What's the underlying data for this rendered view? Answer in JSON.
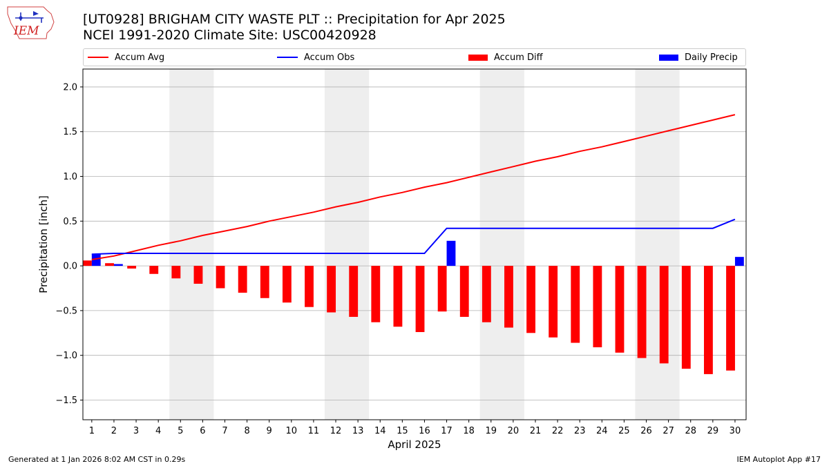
{
  "header": {
    "title_line1": "[UT0928] BRIGHAM CITY WASTE PLT :: Precipitation for Apr 2025",
    "title_line2": "NCEI 1991-2020 Climate Site: USC00420928",
    "logo_text": "IEM"
  },
  "legend": {
    "position": "top",
    "items": [
      {
        "label": "Accum Avg",
        "kind": "line",
        "color": "#ff0000"
      },
      {
        "label": "Accum Obs",
        "kind": "line",
        "color": "#0000ff"
      },
      {
        "label": "Accum Diff",
        "kind": "bar",
        "color": "#ff0000"
      },
      {
        "label": "Daily Precip",
        "kind": "bar",
        "color": "#0000ff"
      }
    ]
  },
  "footer": {
    "generated": "Generated at 1 Jan 2026 8:02 AM CST in 0.29s",
    "app": "IEM Autoplot App #17"
  },
  "colors": {
    "avg": "#ff0000",
    "obs": "#0000ff",
    "diff": "#ff0000",
    "daily": "#0000ff",
    "weekend_shade": "#eeeeee",
    "grid": "#b0b0b0"
  },
  "chart_data": {
    "type": "bar",
    "xlabel": "April 2025",
    "ylabel": "Precipitation [inch]",
    "ylim": [
      -1.72,
      2.2
    ],
    "xlim": [
      0.6,
      30.5
    ],
    "yticks": [
      -1.5,
      -1.0,
      -0.5,
      0.0,
      0.5,
      1.0,
      1.5,
      2.0
    ],
    "ytick_labels": [
      "−1.5",
      "−1.0",
      "−0.5",
      "0.0",
      "0.5",
      "1.0",
      "1.5",
      "2.0"
    ],
    "grid": "horizontal",
    "x": [
      1,
      2,
      3,
      4,
      5,
      6,
      7,
      8,
      9,
      10,
      11,
      12,
      13,
      14,
      15,
      16,
      17,
      18,
      19,
      20,
      21,
      22,
      23,
      24,
      25,
      26,
      27,
      28,
      29,
      30
    ],
    "x_tick_labels": [
      "1",
      "2",
      "3",
      "4",
      "5",
      "6",
      "7",
      "8",
      "9",
      "10",
      "11",
      "12",
      "13",
      "14",
      "15",
      "16",
      "17",
      "18",
      "19",
      "20",
      "21",
      "22",
      "23",
      "24",
      "25",
      "26",
      "27",
      "28",
      "29",
      "30"
    ],
    "weekend_days": [
      [
        5,
        6
      ],
      [
        12,
        13
      ],
      [
        19,
        20
      ],
      [
        26,
        27
      ]
    ],
    "series": [
      {
        "name": "Accum Avg",
        "kind": "line",
        "values": [
          0.07,
          0.11,
          0.17,
          0.23,
          0.28,
          0.34,
          0.39,
          0.44,
          0.5,
          0.55,
          0.6,
          0.66,
          0.71,
          0.77,
          0.82,
          0.88,
          0.93,
          0.99,
          1.05,
          1.11,
          1.17,
          1.22,
          1.28,
          1.33,
          1.39,
          1.45,
          1.51,
          1.57,
          1.63,
          1.69
        ]
      },
      {
        "name": "Accum Obs",
        "kind": "line",
        "values": [
          0.13,
          0.14,
          0.14,
          0.14,
          0.14,
          0.14,
          0.14,
          0.14,
          0.14,
          0.14,
          0.14,
          0.14,
          0.14,
          0.14,
          0.14,
          0.14,
          0.42,
          0.42,
          0.42,
          0.42,
          0.42,
          0.42,
          0.42,
          0.42,
          0.42,
          0.42,
          0.42,
          0.42,
          0.42,
          0.52
        ]
      },
      {
        "name": "Accum Diff",
        "kind": "bar",
        "values": [
          0.06,
          0.03,
          -0.03,
          -0.09,
          -0.14,
          -0.2,
          -0.25,
          -0.3,
          -0.36,
          -0.41,
          -0.46,
          -0.52,
          -0.57,
          -0.63,
          -0.68,
          -0.74,
          -0.51,
          -0.57,
          -0.63,
          -0.69,
          -0.75,
          -0.8,
          -0.86,
          -0.91,
          -0.97,
          -1.03,
          -1.09,
          -1.15,
          -1.21,
          -1.17
        ]
      },
      {
        "name": "Daily Precip",
        "kind": "bar",
        "values": [
          0.13,
          0.02,
          0,
          0,
          0,
          0,
          0,
          0,
          0,
          0,
          0,
          0,
          0,
          0,
          0,
          0,
          0.28,
          0,
          0,
          0,
          0,
          0,
          0,
          0,
          0,
          0,
          0,
          0,
          0,
          0.1
        ]
      }
    ]
  }
}
